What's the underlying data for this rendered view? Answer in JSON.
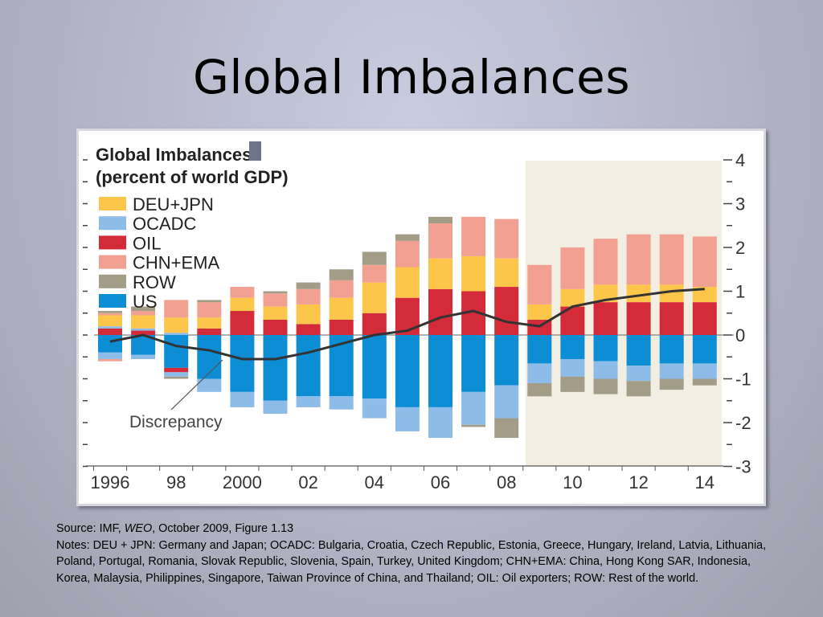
{
  "slide": {
    "title": "Global Imbalances"
  },
  "source": {
    "prefix": "Source: IMF, ",
    "publication": "WEO",
    "suffix": ", October 2009, Figure 1.13"
  },
  "notes": "Notes: DEU + JPN: Germany and Japan; OCADC: Bulgaria, Croatia, Czech Republic, Estonia, Greece, Hungary, Ireland, Latvia, Lithuania, Poland, Portugal, Romania, Slovak Republic, Slovenia, Spain, Turkey, United Kingdom; CHN+EMA: China, Hong Kong SAR, Indonesia, Korea, Malaysia, Philippines, Singapore, Taiwan Province of China, and Thailand; OIL: Oil exporters; ROW: Rest of the world.",
  "colors": {
    "DEU+JPN": "#fcc64a",
    "OCADC": "#8ebce8",
    "OIL": "#d42b3a",
    "CHN+EMA": "#f2a092",
    "ROW": "#a39c86",
    "US": "#0d8dd4",
    "line": "#333333",
    "forecast_bg": "#f2eee2"
  },
  "chart_data": {
    "type": "bar",
    "stacked": true,
    "title": "Global Imbalances",
    "subtitle": "(percent of world GDP)",
    "xlabel": "",
    "ylabel": "",
    "ylim": [
      -3,
      4
    ],
    "yticks": [
      "4",
      "3",
      "2",
      "1",
      "0",
      "-1",
      "-2",
      "-3"
    ],
    "ytick_values": [
      4,
      3,
      2,
      1,
      0,
      -1,
      -2,
      -3
    ],
    "x": [
      1996,
      1997,
      1998,
      1999,
      2000,
      2001,
      2002,
      2003,
      2004,
      2005,
      2006,
      2007,
      2008,
      2009,
      2010,
      2011,
      2012,
      2013,
      2014
    ],
    "xtick_labels": [
      "1996",
      "98",
      "2000",
      "02",
      "04",
      "06",
      "08",
      "10",
      "12",
      "14"
    ],
    "xtick_years": [
      1996,
      1998,
      2000,
      2002,
      2004,
      2006,
      2008,
      2010,
      2012,
      2014
    ],
    "forecast_start": 2009,
    "legend": [
      "DEU+JPN",
      "OCADC",
      "OIL",
      "CHN+EMA",
      "ROW",
      "US"
    ],
    "annotation": "Discrepancy",
    "positive_series": [
      {
        "name": "OIL",
        "values": [
          0.15,
          0.1,
          -0.1,
          0.15,
          0.55,
          0.35,
          0.25,
          0.35,
          0.5,
          0.85,
          1.05,
          1.0,
          1.1,
          0.35,
          0.65,
          0.75,
          0.75,
          0.75,
          0.75
        ]
      },
      {
        "name": "OCADC",
        "values": [
          0.05,
          0.05,
          0.05,
          0.0,
          0.0,
          0.0,
          0.0,
          0.0,
          0.0,
          0.0,
          0.0,
          0.0,
          0.0,
          0.0,
          0.0,
          0.0,
          0.0,
          0.0,
          0.0
        ]
      },
      {
        "name": "DEU+JPN",
        "values": [
          0.25,
          0.3,
          0.35,
          0.25,
          0.3,
          0.3,
          0.45,
          0.5,
          0.7,
          0.7,
          0.7,
          0.8,
          0.65,
          0.35,
          0.4,
          0.4,
          0.4,
          0.4,
          0.35
        ]
      },
      {
        "name": "CHN+EMA",
        "values": [
          0.05,
          0.1,
          0.4,
          0.35,
          0.25,
          0.3,
          0.35,
          0.4,
          0.4,
          0.6,
          0.8,
          0.9,
          0.9,
          0.9,
          0.95,
          1.05,
          1.15,
          1.15,
          1.15
        ]
      },
      {
        "name": "ROW",
        "values": [
          0.05,
          0.1,
          0.0,
          0.05,
          0.0,
          0.05,
          0.15,
          0.25,
          0.3,
          0.15,
          0.15,
          0.0,
          0.0,
          0.0,
          0.0,
          0.0,
          0.0,
          0.0,
          0.0
        ]
      }
    ],
    "negative_series": [
      {
        "name": "US",
        "values": [
          -0.4,
          -0.45,
          -0.75,
          -1.0,
          -1.3,
          -1.5,
          -1.4,
          -1.4,
          -1.45,
          -1.65,
          -1.65,
          -1.3,
          -1.15,
          -0.65,
          -0.55,
          -0.6,
          -0.7,
          -0.65,
          -0.65
        ]
      },
      {
        "name": "OIL",
        "values": [
          0.0,
          0.0,
          -0.1,
          0.0,
          0.0,
          0.0,
          0.0,
          0.0,
          0.0,
          0.0,
          0.0,
          0.0,
          0.0,
          0.0,
          0.0,
          0.0,
          0.0,
          0.0,
          0.0
        ]
      },
      {
        "name": "OCADC",
        "values": [
          -0.15,
          -0.1,
          -0.1,
          -0.3,
          -0.35,
          -0.3,
          -0.25,
          -0.3,
          -0.45,
          -0.55,
          -0.7,
          -0.75,
          -0.75,
          -0.45,
          -0.4,
          -0.4,
          -0.35,
          -0.35,
          -0.35
        ]
      },
      {
        "name": "CHN+EMA",
        "values": [
          -0.05,
          0.0,
          0.0,
          0.0,
          0.0,
          0.0,
          0.0,
          0.0,
          0.0,
          0.0,
          0.0,
          0.0,
          0.0,
          0.0,
          0.0,
          0.0,
          0.0,
          0.0,
          0.0
        ]
      },
      {
        "name": "ROW",
        "values": [
          0.0,
          0.0,
          -0.05,
          0.0,
          0.0,
          0.0,
          0.0,
          0.0,
          0.0,
          0.0,
          0.0,
          -0.05,
          -0.45,
          -0.3,
          -0.35,
          -0.35,
          -0.35,
          -0.25,
          -0.15
        ]
      }
    ],
    "line_series": {
      "name": "Discrepancy",
      "values": [
        -0.15,
        0.0,
        -0.25,
        -0.35,
        -0.55,
        -0.55,
        -0.4,
        -0.2,
        0.0,
        0.1,
        0.4,
        0.55,
        0.3,
        0.2,
        0.65,
        0.8,
        0.9,
        1.0,
        1.05
      ]
    }
  }
}
